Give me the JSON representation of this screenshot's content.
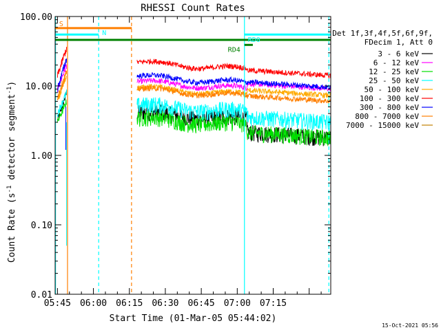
{
  "chart_data": {
    "type": "line",
    "title": "RHESSI Count Rates",
    "xlabel": "Start Time (01-Mar-05 05:44:02)",
    "ylabel_main": "Count Rate (s",
    "ylabel_sup": "-1",
    "ylabel_rest": " detector segment",
    "ylabel_sup2": "-1",
    "ylabel_close": ")",
    "yscale": "log",
    "ylim": [
      0.01,
      100
    ],
    "y_ticks": [
      {
        "value": 0.01,
        "label": "0.01"
      },
      {
        "value": 0.1,
        "label": "0.10"
      },
      {
        "value": 1,
        "label": "1.00"
      },
      {
        "value": 10,
        "label": "10.00"
      },
      {
        "value": 100,
        "label": "100.00"
      }
    ],
    "xlim_min": [
      344.03,
      459
    ],
    "x_ticks": [
      {
        "value": 345,
        "label": "05:45"
      },
      {
        "value": 360,
        "label": "06:00"
      },
      {
        "value": 375,
        "label": "06:15"
      },
      {
        "value": 390,
        "label": "06:30"
      },
      {
        "value": 405,
        "label": "06:45"
      },
      {
        "value": 420,
        "label": "07:00"
      },
      {
        "value": 435,
        "label": "07:15"
      }
    ],
    "legend_header": [
      "Det 1f,3f,4f,5f,6f,9f,",
      "FDecim 1, Att 0"
    ],
    "series": [
      {
        "name": "3 - 6 keV",
        "color": "#000000",
        "seg1": [
          3.2,
          8.0
        ],
        "level": 3.6,
        "post": 1.8
      },
      {
        "name": "6 - 12 keV",
        "color": "#ff00ff",
        "seg1": [
          9.0,
          20.0
        ],
        "level": 10.0,
        "post": 9.0
      },
      {
        "name": "12 - 25 keV",
        "color": "#00e000",
        "seg1": [
          3.0,
          6.0
        ],
        "level": 3.0,
        "post": 1.8
      },
      {
        "name": "25 - 50 keV",
        "color": "#00ffff",
        "seg1": [
          4.0,
          8.0
        ],
        "level": 4.6,
        "post": 3.0
      },
      {
        "name": "50 - 100 keV",
        "color": "#ffaa00",
        "seg1": [
          6.0,
          14.0
        ],
        "level": 8.2,
        "post": 7.2
      },
      {
        "name": "100 - 300 keV",
        "color": "#ff0000",
        "seg1": [
          14.0,
          35.0
        ],
        "level": 19.0,
        "post": 14.0
      },
      {
        "name": "300 - 800 keV",
        "color": "#0000ff",
        "seg1": [
          9.0,
          25.0
        ],
        "level": 12.0,
        "post": 9.5
      },
      {
        "name": "800 - 7000 keV",
        "color": "#ff7f00",
        "seg1": [
          7.0,
          16.0
        ],
        "level": 7.8,
        "post": 6.0
      },
      {
        "name": "7000 - 15000 keV",
        "color": "#c08000",
        "seg1": null,
        "level": null,
        "post": null
      }
    ],
    "segments_min": {
      "seg1": [
        345.0,
        348.8
      ],
      "seg2": [
        378.2,
        460.0
      ],
      "step_at": 424.0
    },
    "vertical_lines": [
      {
        "x": 344.2,
        "color": "#00ffff",
        "style": "solid"
      },
      {
        "x": 349.2,
        "color": "#ff7f00",
        "style": "solid"
      },
      {
        "x": 362.2,
        "color": "#00ffff",
        "style": "dashed"
      },
      {
        "x": 375.9,
        "color": "#ff7f00",
        "style": "dashed"
      },
      {
        "x": 423.0,
        "color": "#00ffff",
        "style": "solid"
      },
      {
        "x": 458.2,
        "color": "#00ffff",
        "style": "dashed"
      }
    ],
    "flag_bars": [
      {
        "label": "S",
        "color": "#ff7f00",
        "x": [
          344.0,
          376.0
        ],
        "y": 68
      },
      {
        "label": "N",
        "color": "#00ffff",
        "x": [
          344.0,
          362.2
        ],
        "y": 55
      },
      {
        "label": "",
        "color": "#008000",
        "x": [
          344.0,
          460.0
        ],
        "y": 46
      },
      {
        "label": "RD4",
        "color": "#008000",
        "x": [
          423.0,
          426.5
        ],
        "y": 39
      },
      {
        "label": "RD0",
        "color": "#00ffff",
        "x": [
          423.0,
          460.0
        ],
        "y": 55
      }
    ],
    "footer_date": "15-Oct-2021 05:56"
  }
}
